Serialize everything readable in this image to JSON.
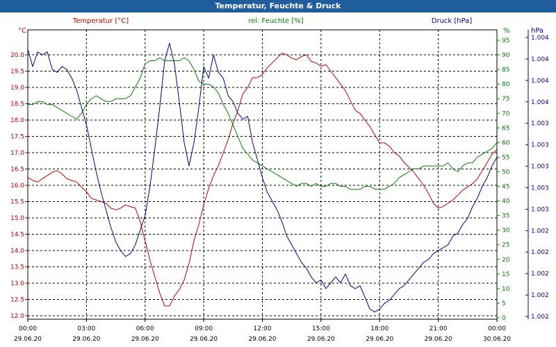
{
  "window": {
    "title": "Temperatur, Feuchte & Druck"
  },
  "colors": {
    "temperature": "#c00000",
    "humidity": "#008000",
    "pressure": "#00008b",
    "titlebar": "#1f5d9c",
    "grid": "#000000"
  },
  "chart_data": {
    "type": "line",
    "title": "Temperatur, Feuchte & Druck",
    "grid": true,
    "x_ticks": [
      {
        "time": "00:00",
        "date": "29.06.20"
      },
      {
        "time": "03:00",
        "date": "29.06.20"
      },
      {
        "time": "06:00",
        "date": "29.06.20"
      },
      {
        "time": "09:00",
        "date": "29.06.20"
      },
      {
        "time": "12:00",
        "date": "29.06.20"
      },
      {
        "time": "15:00",
        "date": "29.06.20"
      },
      {
        "time": "18:00",
        "date": "29.06.20"
      },
      {
        "time": "21:00",
        "date": "29.06.20"
      },
      {
        "time": "00:00",
        "date": "30.06.20"
      }
    ],
    "axes": {
      "temperature": {
        "label": "Temperatur [°C]",
        "unit": "°C",
        "ylim": [
          12.0,
          20.0
        ],
        "ticks": [
          "12.0",
          "12.5",
          "13.0",
          "13.5",
          "14.0",
          "14.5",
          "15.0",
          "15.5",
          "16.0",
          "16.5",
          "17.0",
          "17.5",
          "18.0",
          "18.5",
          "19.0",
          "19.5",
          "20.0"
        ]
      },
      "humidity": {
        "label": "rel. Feuchte [%]",
        "unit": "%",
        "ylim": [
          0,
          95
        ],
        "ticks": [
          "0",
          "5",
          "10",
          "15",
          "20",
          "25",
          "30",
          "35",
          "40",
          "45",
          "50",
          "55",
          "60",
          "65",
          "70",
          "75",
          "80",
          "85",
          "90",
          "95"
        ]
      },
      "pressure": {
        "label": "Druck [hPa]",
        "unit": "hPa",
        "ticks": [
          "1.002",
          "1.002",
          "1.002",
          "1.002",
          "1.002",
          "1.003",
          "1.003",
          "1.003",
          "1.003",
          "1.003",
          "1.004",
          "1.004",
          "1.004",
          "1.004"
        ]
      }
    },
    "x_hours": [
      0,
      0.25,
      0.5,
      0.75,
      1,
      1.25,
      1.5,
      1.75,
      2,
      2.25,
      2.5,
      2.75,
      3,
      3.25,
      3.5,
      3.75,
      4,
      4.25,
      4.5,
      4.75,
      5,
      5.25,
      5.5,
      5.75,
      6,
      6.25,
      6.5,
      6.75,
      7,
      7.25,
      7.5,
      7.75,
      8,
      8.25,
      8.5,
      8.75,
      9,
      9.25,
      9.5,
      9.75,
      10,
      10.25,
      10.5,
      10.75,
      11,
      11.25,
      11.5,
      11.75,
      12,
      12.25,
      12.5,
      12.75,
      13,
      13.25,
      13.5,
      13.75,
      14,
      14.25,
      14.5,
      14.75,
      15,
      15.25,
      15.5,
      15.75,
      16,
      16.25,
      16.5,
      16.75,
      17,
      17.25,
      17.5,
      17.75,
      18,
      18.25,
      18.5,
      18.75,
      19,
      19.25,
      19.5,
      19.75,
      20,
      20.25,
      20.5,
      20.75,
      21,
      21.25,
      21.5,
      21.75,
      22,
      22.25,
      22.5,
      22.75,
      23,
      23.25,
      23.5,
      23.75,
      24
    ],
    "series": [
      {
        "name": "Temperatur [°C]",
        "axis": "temperature",
        "color": "#c00000",
        "values": [
          16.25,
          16.15,
          16.1,
          16.2,
          16.3,
          16.4,
          16.45,
          16.35,
          16.2,
          16.15,
          16.1,
          15.95,
          15.8,
          15.6,
          15.55,
          15.5,
          15.45,
          15.3,
          15.25,
          15.3,
          15.4,
          15.35,
          15.3,
          14.9,
          14.3,
          13.7,
          13.2,
          12.7,
          12.3,
          12.3,
          12.6,
          12.8,
          13.1,
          13.6,
          14.3,
          14.8,
          15.4,
          15.9,
          16.3,
          16.6,
          17.0,
          17.4,
          17.9,
          18.3,
          18.8,
          19.0,
          19.3,
          19.3,
          19.4,
          19.6,
          19.75,
          19.9,
          20.05,
          20.0,
          19.9,
          19.85,
          19.95,
          20.0,
          19.8,
          19.75,
          19.65,
          19.7,
          19.5,
          19.3,
          19.1,
          18.9,
          18.6,
          18.3,
          18.2,
          18.0,
          17.8,
          17.55,
          17.3,
          17.3,
          17.2,
          17.0,
          16.9,
          16.7,
          16.55,
          16.4,
          16.2,
          16.0,
          15.75,
          15.45,
          15.3,
          15.35,
          15.45,
          15.55,
          15.7,
          15.85,
          15.95,
          16.05,
          16.2,
          16.45,
          16.7,
          16.95,
          17.1
        ]
      },
      {
        "name": "rel. Feuchte [%]",
        "axis": "humidity",
        "color": "#008000",
        "values": [
          73,
          73,
          74,
          74,
          73,
          73,
          72,
          71,
          70,
          69,
          68,
          70,
          73,
          75,
          76,
          75,
          74,
          74,
          75,
          75,
          75,
          76,
          79,
          82,
          87,
          88,
          88,
          89,
          88,
          88,
          88,
          88,
          89,
          88,
          85,
          81,
          80,
          80,
          79,
          77,
          73,
          70,
          66,
          62,
          58,
          56,
          54,
          53,
          52,
          51,
          50,
          49,
          48,
          47,
          46,
          45,
          46,
          46,
          45,
          46,
          45,
          45,
          46,
          46,
          45,
          45,
          44,
          44,
          44,
          45,
          45,
          44,
          44,
          44,
          45,
          46,
          48,
          49,
          50,
          51,
          51,
          52,
          52,
          52,
          52,
          52,
          53,
          51,
          50,
          52,
          53,
          53,
          55,
          56,
          57,
          58,
          60
        ]
      },
      {
        "name": "Druck [hPa]",
        "axis": "pressure",
        "color": "#00008b",
        "values": [
          92,
          86,
          91,
          90,
          91,
          85,
          84,
          86,
          85,
          82,
          78,
          72,
          66,
          58,
          50,
          43,
          37,
          31,
          26,
          23,
          21,
          22,
          25,
          30,
          35,
          45,
          58,
          72,
          88,
          94,
          87,
          74,
          60,
          52,
          60,
          72,
          86,
          82,
          90,
          84,
          82,
          76,
          74,
          70,
          68,
          69,
          60,
          54,
          48,
          43,
          40,
          37,
          33,
          28,
          25,
          22,
          19,
          17,
          14,
          12,
          13,
          10,
          12,
          14,
          12,
          15,
          11,
          10,
          11,
          7,
          3,
          2,
          3,
          5,
          6,
          8,
          10,
          11,
          13,
          15,
          17,
          19,
          20,
          22,
          23,
          24,
          25,
          28,
          29,
          32,
          34,
          38,
          41,
          45,
          48,
          52,
          55
        ]
      }
    ]
  }
}
